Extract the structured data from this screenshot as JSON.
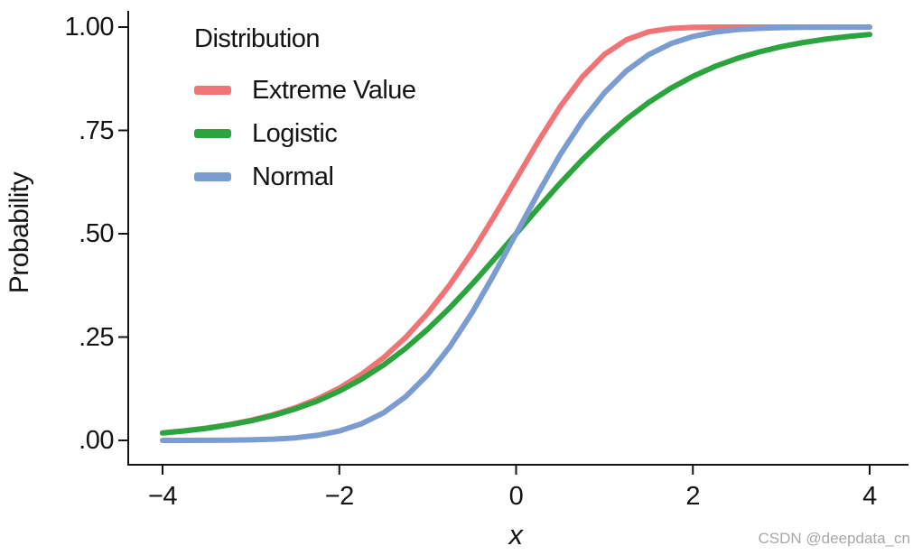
{
  "watermark": "CSDN @deepdata_cn",
  "chart_data": {
    "type": "line",
    "title": "",
    "legend_title": "Distribution",
    "legend_position": "top-left-inside",
    "xlabel": "x",
    "ylabel": "Probability",
    "xlim": [
      -4,
      4
    ],
    "ylim": [
      0,
      1
    ],
    "grid": false,
    "axis_color": "#141414",
    "x_ticks": [
      {
        "value": -4,
        "label": "−4"
      },
      {
        "value": -2,
        "label": "−2"
      },
      {
        "value": 0,
        "label": "0"
      },
      {
        "value": 2,
        "label": "2"
      },
      {
        "value": 4,
        "label": "4"
      }
    ],
    "y_ticks": [
      {
        "value": 1.0,
        "label": "1.00"
      },
      {
        "value": 0.75,
        "label": ".75"
      },
      {
        "value": 0.5,
        "label": ".50"
      },
      {
        "value": 0.25,
        "label": ".25"
      },
      {
        "value": 0.0,
        "label": ".00"
      }
    ],
    "x": [
      -4,
      -3.75,
      -3.5,
      -3.25,
      -3,
      -2.75,
      -2.5,
      -2.25,
      -2,
      -1.75,
      -1.5,
      -1.25,
      -1,
      -0.75,
      -0.5,
      -0.25,
      0,
      0.25,
      0.5,
      0.75,
      1,
      1.25,
      1.5,
      1.75,
      2,
      2.25,
      2.5,
      2.75,
      3,
      3.25,
      3.5,
      3.75,
      4
    ],
    "series": [
      {
        "name": "Extreme Value",
        "color": "#f07475",
        "values": [
          0.0182,
          0.0233,
          0.0297,
          0.038,
          0.0486,
          0.0619,
          0.0788,
          0.1,
          0.1266,
          0.1595,
          0.2,
          0.2491,
          0.3078,
          0.3765,
          0.4548,
          0.541,
          0.6321,
          0.7231,
          0.8077,
          0.8796,
          0.934,
          0.9695,
          0.9887,
          0.9968,
          0.9994,
          0.9999,
          1.0,
          1.0,
          1.0,
          1.0,
          1.0,
          1.0,
          1.0
        ]
      },
      {
        "name": "Logistic",
        "color": "#2ba43d",
        "values": [
          0.018,
          0.023,
          0.0293,
          0.0374,
          0.0474,
          0.0601,
          0.0759,
          0.0953,
          0.1192,
          0.148,
          0.1824,
          0.2227,
          0.2689,
          0.3208,
          0.3775,
          0.4378,
          0.5,
          0.5622,
          0.6225,
          0.6792,
          0.7311,
          0.7773,
          0.8176,
          0.852,
          0.8808,
          0.9047,
          0.9241,
          0.9399,
          0.9526,
          0.9626,
          0.9707,
          0.977,
          0.982
        ]
      },
      {
        "name": "Normal",
        "color": "#7b9cd1",
        "values": [
          0.0,
          0.0001,
          0.0002,
          0.0006,
          0.0013,
          0.003,
          0.0062,
          0.0122,
          0.0228,
          0.0401,
          0.0668,
          0.1056,
          0.1587,
          0.2266,
          0.3085,
          0.4013,
          0.5,
          0.5987,
          0.6915,
          0.7734,
          0.8413,
          0.8944,
          0.9332,
          0.9599,
          0.9772,
          0.9878,
          0.9938,
          0.997,
          0.9987,
          0.9994,
          0.9998,
          0.9999,
          1.0
        ]
      }
    ]
  }
}
